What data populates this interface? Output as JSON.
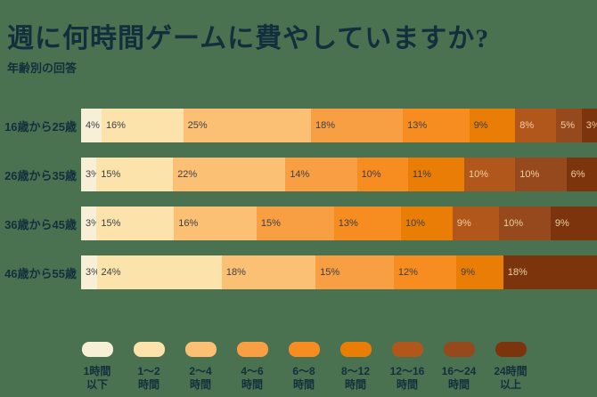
{
  "title": "週に何時間ゲームに費やしていますか?",
  "subtitle": "年齢別の回答",
  "colors": {
    "background": "#4A7251",
    "heading_text": "#132F3D",
    "value_text_dark": "#3C4046",
    "value_text_light": "#EDCFA2"
  },
  "chart_data": {
    "type": "bar",
    "variant": "stacked-horizontal-100pct",
    "unit": "%",
    "legend_position": "bottom",
    "grid": false,
    "categories": [
      "16歳から25歳",
      "26歳から35歳",
      "36歳から45歳",
      "46歳から55歳"
    ],
    "series": [
      {
        "name": "1時間以下",
        "label_lines": [
          "1時間",
          "以下"
        ],
        "color": "#F8EFD7",
        "text": "dark",
        "values": [
          4,
          3,
          3,
          3
        ]
      },
      {
        "name": "1〜2時間",
        "label_lines": [
          "1〜2",
          "時間"
        ],
        "color": "#FBE3AB",
        "text": "dark",
        "values": [
          16,
          15,
          15,
          24
        ]
      },
      {
        "name": "2〜4時間",
        "label_lines": [
          "2〜4",
          "時間"
        ],
        "color": "#FCC075",
        "text": "dark",
        "values": [
          25,
          22,
          16,
          18
        ]
      },
      {
        "name": "4〜6時間",
        "label_lines": [
          "4〜6",
          "時間"
        ],
        "color": "#F99F43",
        "text": "dark",
        "values": [
          18,
          14,
          15,
          15
        ]
      },
      {
        "name": "6〜8時間",
        "label_lines": [
          "6〜8",
          "時間"
        ],
        "color": "#F78D20",
        "text": "dark",
        "values": [
          13,
          10,
          13,
          12
        ]
      },
      {
        "name": "8〜12時間",
        "label_lines": [
          "8〜12",
          "時間"
        ],
        "color": "#EA7D06",
        "text": "dark",
        "values": [
          9,
          11,
          10,
          9
        ]
      },
      {
        "name": "12〜16時間",
        "label_lines": [
          "12〜16",
          "時間"
        ],
        "color": "#B2571B",
        "text": "light",
        "values": [
          8,
          10,
          9,
          0
        ]
      },
      {
        "name": "16〜24時間",
        "label_lines": [
          "16〜24",
          "時間"
        ],
        "color": "#96491C",
        "text": "light",
        "values": [
          5,
          10,
          10,
          0
        ]
      },
      {
        "name": "24時間以上",
        "label_lines": [
          "24時間",
          "以上"
        ],
        "color": "#7B340C",
        "text": "light",
        "values": [
          3,
          6,
          9,
          18
        ]
      }
    ]
  }
}
